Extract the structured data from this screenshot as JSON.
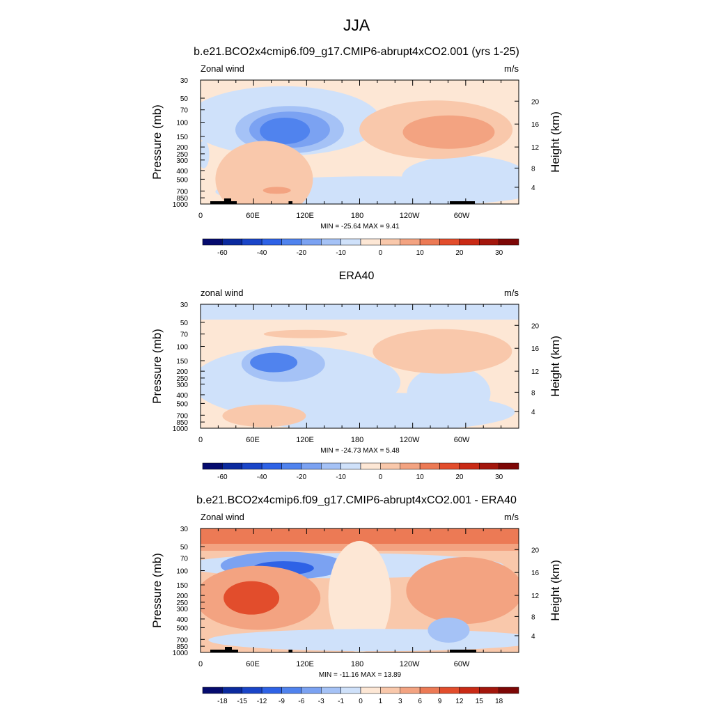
{
  "figure": {
    "title": "JJA"
  },
  "chart_data": [
    {
      "type": "contour",
      "title": "b.e21.BCO2x4cmip6.f09_g17.CMIP6-abrupt4xCO2.001 (yrs 1-25)",
      "left_label": "Zonal wind",
      "units": "m/s",
      "ylabel": "Pressure (mb)",
      "ylabel_right": "Height (km)",
      "pressure_ticks": [
        "30",
        "50",
        "70",
        "100",
        "150",
        "200",
        "250",
        "300",
        "400",
        "500",
        "700",
        "850",
        "1000"
      ],
      "height_ticks": [
        "20",
        "16",
        "12",
        "8",
        "4"
      ],
      "lon_ticks": [
        "0",
        "60E",
        "120E",
        "180",
        "120W",
        "60W"
      ],
      "stats": "MIN = -25.64  MAX =   9.41",
      "colorbar": {
        "labels": [
          "-60",
          "-40",
          "-20",
          "-10",
          "0",
          "10",
          "20",
          "30"
        ],
        "colors": [
          "#050b6e",
          "#0b2a9e",
          "#1a45c8",
          "#2e62e6",
          "#5083ee",
          "#7ba2f2",
          "#a5c2f6",
          "#cfe1fa",
          "#fde7d5",
          "#f9c8ab",
          "#f3a381",
          "#ec7a55",
          "#e24d2c",
          "#c92a15",
          "#a3160c",
          "#7d0706"
        ]
      },
      "summary": {
        "min": -25.64,
        "max": 9.41
      }
    },
    {
      "type": "contour",
      "title": "ERA40",
      "left_label": "zonal wind",
      "units": "m/s",
      "ylabel": "Pressure (mb)",
      "ylabel_right": "Height (km)",
      "pressure_ticks": [
        "30",
        "50",
        "70",
        "100",
        "150",
        "200",
        "250",
        "300",
        "400",
        "500",
        "700",
        "850",
        "1000"
      ],
      "height_ticks": [
        "20",
        "16",
        "12",
        "8",
        "4"
      ],
      "lon_ticks": [
        "0",
        "60E",
        "120E",
        "180",
        "120W",
        "60W"
      ],
      "stats": "MIN = -24.73  MAX =   5.48",
      "colorbar": {
        "labels": [
          "-60",
          "-40",
          "-20",
          "-10",
          "0",
          "10",
          "20",
          "30"
        ],
        "colors": [
          "#050b6e",
          "#0b2a9e",
          "#1a45c8",
          "#2e62e6",
          "#5083ee",
          "#7ba2f2",
          "#a5c2f6",
          "#cfe1fa",
          "#fde7d5",
          "#f9c8ab",
          "#f3a381",
          "#ec7a55",
          "#e24d2c",
          "#c92a15",
          "#a3160c",
          "#7d0706"
        ]
      },
      "summary": {
        "min": -24.73,
        "max": 5.48
      }
    },
    {
      "type": "contour",
      "title": "b.e21.BCO2x4cmip6.f09_g17.CMIP6-abrupt4xCO2.001 - ERA40",
      "left_label": "Zonal wind",
      "units": "m/s",
      "ylabel": "Pressure (mb)",
      "ylabel_right": "Height (km)",
      "pressure_ticks": [
        "30",
        "50",
        "70",
        "100",
        "150",
        "200",
        "250",
        "300",
        "400",
        "500",
        "700",
        "850",
        "1000"
      ],
      "height_ticks": [
        "20",
        "16",
        "12",
        "8",
        "4"
      ],
      "lon_ticks": [
        "0",
        "60E",
        "120E",
        "180",
        "120W",
        "60W"
      ],
      "stats": "MIN = -11.16  MAX =  13.89",
      "colorbar": {
        "labels": [
          "-18",
          "-15",
          "-12",
          "-9",
          "-6",
          "-3",
          "-1",
          "0",
          "1",
          "3",
          "6",
          "9",
          "12",
          "15",
          "18"
        ],
        "colors": [
          "#050b6e",
          "#0b2a9e",
          "#1a45c8",
          "#2e62e6",
          "#5083ee",
          "#7ba2f2",
          "#a5c2f6",
          "#cfe1fa",
          "#fde7d5",
          "#f9c8ab",
          "#f3a381",
          "#ec7a55",
          "#e24d2c",
          "#c92a15",
          "#a3160c",
          "#7d0706"
        ]
      },
      "summary": {
        "min": -11.16,
        "max": 13.89
      }
    }
  ]
}
